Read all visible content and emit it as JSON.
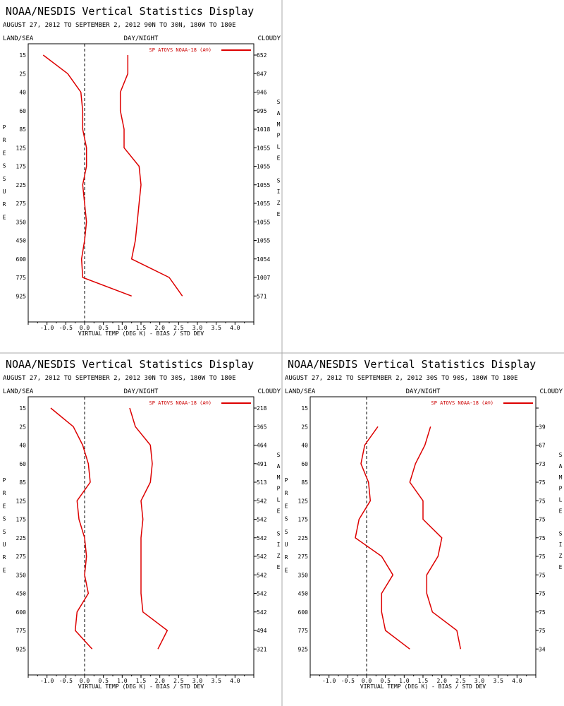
{
  "panel_title": "NOAA/NESDIS Vertical Statistics Display",
  "header": {
    "left": "LAND/SEA",
    "center": "DAY/NIGHT",
    "right": "CLOUDY"
  },
  "side_labels": {
    "left": "PRESSURE",
    "right": "SAMPLE SIZE"
  },
  "legend_label": "SP ATOVS NOAA-18 (A®)",
  "xlabel": "VIRTUAL TEMP (DEG K) - BIAS / STD DEV",
  "colors": {
    "series": "#dd0000",
    "zero_line": "#000000",
    "frame": "#000000",
    "divider": "#aaaaaa"
  },
  "chart_data": [
    {
      "type": "line",
      "subtitle": "AUGUST 27, 2012 TO SEPTEMBER 2, 2012  90N TO 30N, 180W TO 180E",
      "pressure_levels": [
        "15",
        "25",
        "40",
        "60",
        "85",
        "125",
        "175",
        "225",
        "275",
        "350",
        "450",
        "600",
        "775",
        "925"
      ],
      "sample_size": [
        "652",
        "847",
        "946",
        "995",
        "1018",
        "1055",
        "1055",
        "1055",
        "1055",
        "1055",
        "1055",
        "1054",
        "1007",
        "571"
      ],
      "xticks": [
        "-1.0",
        "-0.5",
        "0.0",
        "0.5",
        "1.0",
        "1.5",
        "2.0",
        "2.5",
        "3.0",
        "3.5",
        "4.0"
      ],
      "xlim": [
        -1.5,
        4.5
      ],
      "series": [
        {
          "role": "bias",
          "values": [
            -1.1,
            -0.45,
            -0.1,
            -0.05,
            -0.05,
            0.05,
            0.05,
            -0.05,
            0.0,
            0.05,
            0.0,
            -0.08,
            -0.05,
            1.25
          ]
        },
        {
          "role": "std_dev",
          "values": [
            1.15,
            1.15,
            0.95,
            0.95,
            1.05,
            1.05,
            1.45,
            1.5,
            1.45,
            1.4,
            1.35,
            1.25,
            2.25,
            2.6
          ]
        }
      ]
    },
    {
      "type": "line",
      "subtitle": "AUGUST 27, 2012 TO SEPTEMBER 2, 2012  30N TO 30S, 180W TO 180E",
      "pressure_levels": [
        "15",
        "25",
        "40",
        "60",
        "85",
        "125",
        "175",
        "225",
        "275",
        "350",
        "450",
        "600",
        "775",
        "925"
      ],
      "sample_size": [
        "218",
        "365",
        "464",
        "491",
        "513",
        "542",
        "542",
        "542",
        "542",
        "542",
        "542",
        "542",
        "494",
        "321"
      ],
      "xticks": [
        "-1.0",
        "-0.5",
        "0.0",
        "0.5",
        "1.0",
        "1.5",
        "2.0",
        "2.5",
        "3.0",
        "3.5",
        "4.0"
      ],
      "xlim": [
        -1.5,
        4.5
      ],
      "series": [
        {
          "role": "bias",
          "values": [
            -0.9,
            -0.3,
            -0.05,
            0.1,
            0.15,
            -0.2,
            -0.15,
            0.0,
            0.05,
            0.0,
            0.1,
            -0.2,
            -0.25,
            0.2
          ]
        },
        {
          "role": "std_dev",
          "values": [
            1.2,
            1.35,
            1.75,
            1.8,
            1.75,
            1.5,
            1.55,
            1.5,
            1.5,
            1.5,
            1.5,
            1.55,
            2.2,
            1.95
          ]
        }
      ]
    },
    {
      "type": "line",
      "subtitle": "AUGUST 27, 2012 TO SEPTEMBER 2, 2012  30S TO 90S, 180W TO 180E",
      "pressure_levels": [
        "15",
        "25",
        "40",
        "60",
        "85",
        "125",
        "175",
        "225",
        "275",
        "350",
        "450",
        "600",
        "775",
        "925"
      ],
      "sample_size": [
        "",
        "39",
        "67",
        "73",
        "75",
        "75",
        "75",
        "75",
        "75",
        "75",
        "75",
        "75",
        "75",
        "34"
      ],
      "xticks": [
        "-1.0",
        "-0.5",
        "0.0",
        "0.5",
        "1.0",
        "1.5",
        "2.0",
        "2.5",
        "3.0",
        "3.5",
        "4.0"
      ],
      "xlim": [
        -1.5,
        4.5
      ],
      "series": [
        {
          "role": "bias",
          "values": [
            null,
            0.3,
            -0.05,
            -0.15,
            0.05,
            0.1,
            -0.2,
            -0.3,
            0.4,
            0.7,
            0.4,
            0.4,
            0.5,
            1.15
          ]
        },
        {
          "role": "std_dev",
          "values": [
            null,
            1.7,
            1.55,
            1.3,
            1.15,
            1.5,
            1.5,
            2.0,
            1.9,
            1.6,
            1.6,
            1.75,
            2.4,
            2.5
          ]
        }
      ]
    }
  ]
}
